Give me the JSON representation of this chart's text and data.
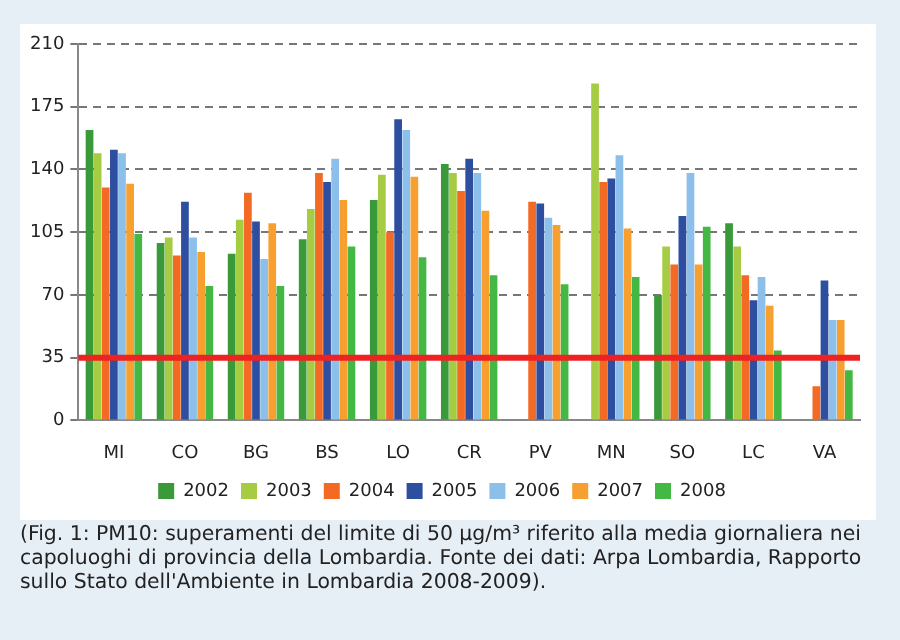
{
  "chart_data": {
    "type": "bar",
    "categories": [
      "MI",
      "CO",
      "BG",
      "BS",
      "LO",
      "CR",
      "PV",
      "MN",
      "SO",
      "LC",
      "VA"
    ],
    "series": [
      {
        "name": "2002",
        "color": "#3a9a3a",
        "values": [
          162,
          99,
          93,
          101,
          123,
          143,
          null,
          null,
          70,
          110,
          null
        ]
      },
      {
        "name": "2003",
        "color": "#a6cc44",
        "values": [
          149,
          102,
          112,
          118,
          137,
          138,
          null,
          188,
          97,
          97,
          null
        ]
      },
      {
        "name": "2004",
        "color": "#f26a24",
        "values": [
          130,
          92,
          127,
          138,
          105,
          128,
          122,
          133,
          87,
          81,
          19
        ]
      },
      {
        "name": "2005",
        "color": "#2e4ea0",
        "values": [
          151,
          122,
          111,
          133,
          168,
          146,
          121,
          135,
          114,
          67,
          78
        ]
      },
      {
        "name": "2006",
        "color": "#8cbfea",
        "values": [
          149,
          102,
          90,
          146,
          162,
          138,
          113,
          148,
          138,
          80,
          56
        ]
      },
      {
        "name": "2007",
        "color": "#f7a030",
        "values": [
          132,
          94,
          110,
          123,
          136,
          117,
          109,
          107,
          87,
          64,
          56
        ]
      },
      {
        "name": "2008",
        "color": "#44b844",
        "values": [
          104,
          75,
          75,
          97,
          91,
          81,
          76,
          80,
          108,
          39,
          28
        ]
      }
    ],
    "ylim": [
      0,
      210
    ],
    "yticks": [
      0,
      35,
      70,
      105,
      140,
      175,
      210
    ],
    "grid": "y",
    "legend": "bottom",
    "ref_lines": [
      {
        "axis": "y",
        "value": 35,
        "color": "#ee2222"
      }
    ],
    "annotations": [
      "(Fig. 1: PM10: superamenti del limite di 50 μg/m³ riferito alla media giornaliera nei capoluoghi di provincia della Lombardia. Fonte dei dati: Arpa Lombardia, Rapporto sullo Stato dell'Ambiente in Lombardia 2008-2009)."
    ]
  }
}
